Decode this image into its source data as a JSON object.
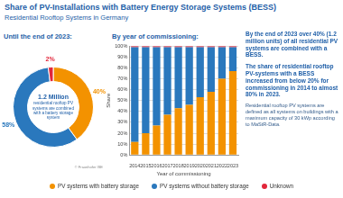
{
  "title": "Share of PV-Installations with Battery Energy Storage Systems (BESS)",
  "subtitle": "Residential Rooftop Systems in Germany",
  "notes": [
    "By the end of 2023 over 40% (1.2 million units) of all residential PV systems are combined with a BESS.",
    "The share of residential rooftop PV-systems with a BESS increased from below 20% for commissioning in 2014 to almost 80% in 2023.",
    "Residential rooftop PV systems are defined as all systems on buildings with a maximum capacity of 30 kWp according to MaStR-Data."
  ],
  "chart_data": [
    {
      "type": "donut",
      "title": "Until the end of 2023:",
      "categories": [
        "PV systems with battery storage",
        "PV systems without battery storage",
        "Unknown"
      ],
      "values": [
        40,
        58,
        2
      ],
      "value_labels": [
        "40%",
        "58%",
        "2%"
      ],
      "colors": [
        "#f39200",
        "#2a78bd",
        "#e2263a"
      ],
      "data_labels": true,
      "center_title": "1.2 Million",
      "center_text": "residential rooftop PV systems are combined with a battery storage system",
      "source": "© Fraunhofer ISE"
    },
    {
      "type": "bar",
      "title": "By year of commissioning:",
      "stacked": true,
      "grid": true,
      "legend": "bottom",
      "x_label": "Year of commissioning",
      "y_label": "Share",
      "categories": [
        "2014",
        "2015",
        "2016",
        "2017",
        "2018",
        "2019",
        "2020",
        "2021",
        "2022",
        "2023"
      ],
      "series": [
        {
          "name": "PV systems with battery storage",
          "color": "#f39200",
          "values": [
            12,
            20,
            27,
            37,
            43,
            46,
            53,
            58,
            70,
            77
          ]
        },
        {
          "name": "PV systems without battery storage",
          "color": "#2a78bd",
          "values": [
            87,
            79,
            72,
            62,
            56,
            53,
            46,
            41,
            29,
            22
          ]
        },
        {
          "name": "Unknown",
          "color": "#e2263a",
          "values": [
            1,
            1,
            1,
            1,
            1,
            1,
            1,
            1,
            1,
            1
          ]
        }
      ],
      "ylim": [
        0,
        100
      ],
      "yticks": [
        {
          "value": 0,
          "label": "0%"
        },
        {
          "value": 10,
          "label": "10%"
        },
        {
          "value": 20,
          "label": "20%"
        },
        {
          "value": 30,
          "label": "30%"
        },
        {
          "value": 40,
          "label": "40%"
        },
        {
          "value": 50,
          "label": "50%"
        },
        {
          "value": 60,
          "label": "60%"
        },
        {
          "value": 70,
          "label": "70%"
        },
        {
          "value": 80,
          "label": "80%"
        },
        {
          "value": 90,
          "label": "90%"
        },
        {
          "value": 100,
          "label": "100%"
        }
      ]
    }
  ]
}
